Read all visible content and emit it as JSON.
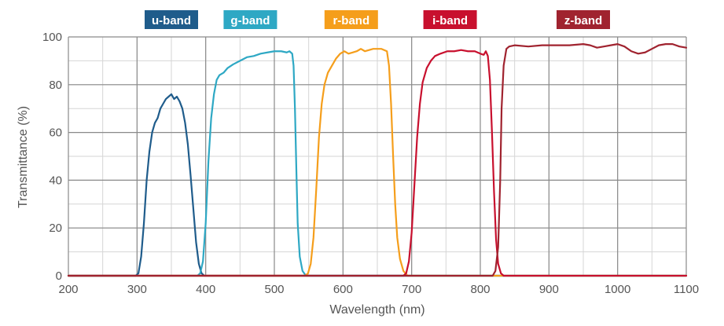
{
  "chart_data": {
    "type": "line",
    "title": "",
    "xlabel": "Wavelength (nm)",
    "ylabel": "Transmittance (%)",
    "xlim": [
      200,
      1100
    ],
    "ylim": [
      0,
      100
    ],
    "x_ticks": [
      200,
      300,
      400,
      500,
      600,
      700,
      800,
      900,
      1000,
      1100
    ],
    "y_ticks": [
      0,
      20,
      40,
      60,
      80,
      100
    ],
    "grid": true,
    "legend": "top",
    "series": [
      {
        "name": "u-band",
        "color": "#1f5c8b",
        "points": [
          [
            200,
            0
          ],
          [
            298,
            0
          ],
          [
            302,
            1
          ],
          [
            306,
            8
          ],
          [
            310,
            22
          ],
          [
            314,
            40
          ],
          [
            318,
            52
          ],
          [
            322,
            60
          ],
          [
            326,
            64
          ],
          [
            330,
            66
          ],
          [
            334,
            70
          ],
          [
            338,
            72
          ],
          [
            342,
            74
          ],
          [
            346,
            75
          ],
          [
            350,
            76
          ],
          [
            354,
            74
          ],
          [
            358,
            75
          ],
          [
            362,
            73
          ],
          [
            366,
            70
          ],
          [
            370,
            64
          ],
          [
            374,
            55
          ],
          [
            378,
            42
          ],
          [
            382,
            28
          ],
          [
            386,
            14
          ],
          [
            390,
            5
          ],
          [
            394,
            1
          ],
          [
            398,
            0
          ],
          [
            1100,
            0
          ]
        ]
      },
      {
        "name": "g-band",
        "color": "#2ea8c4",
        "points": [
          [
            200,
            0
          ],
          [
            388,
            0
          ],
          [
            392,
            1
          ],
          [
            396,
            6
          ],
          [
            400,
            22
          ],
          [
            404,
            48
          ],
          [
            408,
            66
          ],
          [
            412,
            76
          ],
          [
            416,
            82
          ],
          [
            420,
            84
          ],
          [
            426,
            85
          ],
          [
            432,
            87
          ],
          [
            440,
            88.5
          ],
          [
            450,
            90
          ],
          [
            460,
            91.5
          ],
          [
            470,
            92
          ],
          [
            480,
            93
          ],
          [
            490,
            93.5
          ],
          [
            500,
            94
          ],
          [
            510,
            94
          ],
          [
            518,
            93.5
          ],
          [
            522,
            94
          ],
          [
            526,
            93
          ],
          [
            528,
            88
          ],
          [
            530,
            70
          ],
          [
            532,
            45
          ],
          [
            534,
            22
          ],
          [
            537,
            8
          ],
          [
            541,
            2
          ],
          [
            546,
            0
          ],
          [
            1100,
            0
          ]
        ]
      },
      {
        "name": "r-band",
        "color": "#f59e1b",
        "points": [
          [
            200,
            0
          ],
          [
            545,
            0
          ],
          [
            549,
            1
          ],
          [
            553,
            5
          ],
          [
            557,
            16
          ],
          [
            561,
            36
          ],
          [
            565,
            58
          ],
          [
            569,
            72
          ],
          [
            573,
            80
          ],
          [
            578,
            85
          ],
          [
            584,
            88
          ],
          [
            590,
            91
          ],
          [
            596,
            93
          ],
          [
            602,
            94
          ],
          [
            608,
            93
          ],
          [
            614,
            93.5
          ],
          [
            620,
            94
          ],
          [
            626,
            95
          ],
          [
            632,
            94
          ],
          [
            638,
            94.5
          ],
          [
            644,
            95
          ],
          [
            650,
            95
          ],
          [
            656,
            95
          ],
          [
            660,
            94.5
          ],
          [
            664,
            94
          ],
          [
            667,
            88
          ],
          [
            670,
            72
          ],
          [
            673,
            50
          ],
          [
            676,
            30
          ],
          [
            679,
            16
          ],
          [
            683,
            7
          ],
          [
            688,
            2
          ],
          [
            694,
            0
          ],
          [
            1100,
            0
          ]
        ]
      },
      {
        "name": "i-band",
        "color": "#c8102e",
        "points": [
          [
            200,
            0
          ],
          [
            688,
            0
          ],
          [
            692,
            1
          ],
          [
            696,
            6
          ],
          [
            700,
            18
          ],
          [
            704,
            38
          ],
          [
            708,
            58
          ],
          [
            712,
            72
          ],
          [
            716,
            81
          ],
          [
            722,
            87
          ],
          [
            728,
            90
          ],
          [
            734,
            92
          ],
          [
            742,
            93
          ],
          [
            752,
            94
          ],
          [
            762,
            94
          ],
          [
            772,
            94.5
          ],
          [
            782,
            94
          ],
          [
            792,
            94
          ],
          [
            800,
            93
          ],
          [
            805,
            92.5
          ],
          [
            808,
            94
          ],
          [
            811,
            92
          ],
          [
            814,
            82
          ],
          [
            817,
            60
          ],
          [
            820,
            35
          ],
          [
            823,
            15
          ],
          [
            826,
            5
          ],
          [
            830,
            1
          ],
          [
            834,
            0
          ],
          [
            1100,
            0
          ]
        ]
      },
      {
        "name": "z-band",
        "color": "#a0232f",
        "points": [
          [
            200,
            0
          ],
          [
            818,
            0
          ],
          [
            822,
            2
          ],
          [
            826,
            12
          ],
          [
            829,
            40
          ],
          [
            831,
            70
          ],
          [
            834,
            88
          ],
          [
            838,
            95
          ],
          [
            842,
            96
          ],
          [
            850,
            96.5
          ],
          [
            870,
            96
          ],
          [
            890,
            96.5
          ],
          [
            910,
            96.5
          ],
          [
            930,
            96.5
          ],
          [
            950,
            97
          ],
          [
            960,
            96.5
          ],
          [
            970,
            95.5
          ],
          [
            980,
            96
          ],
          [
            990,
            96.5
          ],
          [
            1000,
            97
          ],
          [
            1010,
            96
          ],
          [
            1020,
            94
          ],
          [
            1030,
            93
          ],
          [
            1040,
            93.5
          ],
          [
            1050,
            95
          ],
          [
            1060,
            96.5
          ],
          [
            1070,
            97
          ],
          [
            1080,
            97
          ],
          [
            1090,
            96
          ],
          [
            1100,
            95.5
          ]
        ]
      }
    ]
  }
}
